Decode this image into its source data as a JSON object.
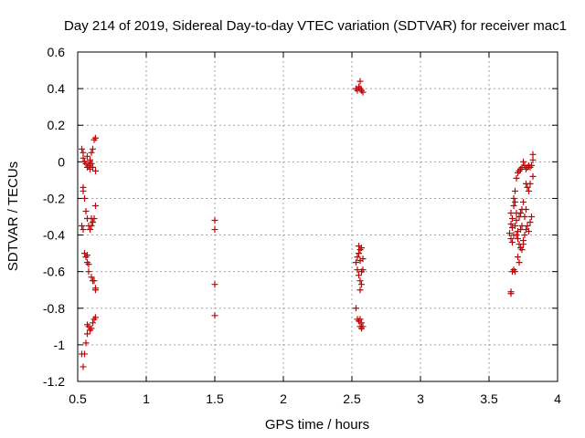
{
  "chart_data": {
    "type": "scatter",
    "title": "Day 214 of 2019, Sidereal Day-to-day VTEC variation (SDTVAR) for receiver mac1",
    "xlabel": "GPS time / hours",
    "ylabel": "SDTVAR / TECUs",
    "xlim": [
      0.5,
      4.0
    ],
    "ylim": [
      -1.2,
      0.6
    ],
    "xticks": [
      0.5,
      1.0,
      1.5,
      2.0,
      2.5,
      3.0,
      3.5,
      4.0
    ],
    "xtick_labels": [
      "0.5",
      "1",
      "1.5",
      "2",
      "2.5",
      "3",
      "3.5",
      "4"
    ],
    "yticks": [
      -1.2,
      -1.0,
      -0.8,
      -0.6,
      -0.4,
      -0.2,
      0.0,
      0.2,
      0.4,
      0.6
    ],
    "ytick_labels": [
      "-1.2",
      "-1",
      "-0.8",
      "-0.6",
      "-0.4",
      "-0.2",
      "0",
      "0.2",
      "0.4",
      "0.6"
    ],
    "grid": true,
    "marker": "plus",
    "color": "#cc0000",
    "series": [
      {
        "name": "SDTVAR",
        "points": [
          [
            0.53,
            0.07
          ],
          [
            0.54,
            0.05
          ],
          [
            0.54,
            0.02
          ],
          [
            0.55,
            0.0
          ],
          [
            0.56,
            -0.01
          ],
          [
            0.57,
            0.03
          ],
          [
            0.57,
            -0.03
          ],
          [
            0.58,
            -0.02
          ],
          [
            0.59,
            0.01
          ],
          [
            0.59,
            -0.04
          ],
          [
            0.6,
            0.05
          ],
          [
            0.6,
            -0.01
          ],
          [
            0.61,
            0.07
          ],
          [
            0.61,
            -0.03
          ],
          [
            0.62,
            0.12
          ],
          [
            0.63,
            0.13
          ],
          [
            0.63,
            -0.05
          ],
          [
            0.59,
            0.0
          ],
          [
            0.54,
            -0.14
          ],
          [
            0.54,
            -0.16
          ],
          [
            0.55,
            -0.2
          ],
          [
            0.56,
            -0.27
          ],
          [
            0.57,
            -0.31
          ],
          [
            0.53,
            -0.35
          ],
          [
            0.54,
            -0.37
          ],
          [
            0.58,
            -0.35
          ],
          [
            0.59,
            -0.37
          ],
          [
            0.6,
            -0.31
          ],
          [
            0.6,
            -0.35
          ],
          [
            0.61,
            -0.33
          ],
          [
            0.62,
            -0.31
          ],
          [
            0.63,
            -0.24
          ],
          [
            0.55,
            -0.5
          ],
          [
            0.56,
            -0.52
          ],
          [
            0.57,
            -0.51
          ],
          [
            0.57,
            -0.55
          ],
          [
            0.58,
            -0.56
          ],
          [
            0.58,
            -0.6
          ],
          [
            0.6,
            -0.63
          ],
          [
            0.61,
            -0.65
          ],
          [
            0.62,
            -0.65
          ],
          [
            0.63,
            -0.69
          ],
          [
            0.63,
            -0.7
          ],
          [
            0.57,
            -0.89
          ],
          [
            0.58,
            -0.9
          ],
          [
            0.59,
            -0.92
          ],
          [
            0.6,
            -0.91
          ],
          [
            0.61,
            -0.88
          ],
          [
            0.62,
            -0.86
          ],
          [
            0.63,
            -0.85
          ],
          [
            0.57,
            -0.94
          ],
          [
            0.56,
            -0.99
          ],
          [
            0.55,
            -1.05
          ],
          [
            0.53,
            -1.05
          ],
          [
            0.54,
            -1.12
          ],
          [
            1.5,
            -0.32
          ],
          [
            1.5,
            -0.37
          ],
          [
            1.5,
            -0.67
          ],
          [
            1.5,
            -0.84
          ],
          [
            2.53,
            0.4
          ],
          [
            2.54,
            0.39
          ],
          [
            2.55,
            0.41
          ],
          [
            2.56,
            0.44
          ],
          [
            2.56,
            0.4
          ],
          [
            2.57,
            0.39
          ],
          [
            2.58,
            0.38
          ],
          [
            2.55,
            -0.46
          ],
          [
            2.56,
            -0.48
          ],
          [
            2.57,
            -0.47
          ],
          [
            2.55,
            -0.5
          ],
          [
            2.54,
            -0.52
          ],
          [
            2.56,
            -0.54
          ],
          [
            2.58,
            -0.53
          ],
          [
            2.53,
            -0.55
          ],
          [
            2.54,
            -0.59
          ],
          [
            2.57,
            -0.6
          ],
          [
            2.58,
            -0.59
          ],
          [
            2.55,
            -0.62
          ],
          [
            2.56,
            -0.65
          ],
          [
            2.57,
            -0.67
          ],
          [
            2.56,
            -0.7
          ],
          [
            2.53,
            -0.8
          ],
          [
            2.54,
            -0.86
          ],
          [
            2.55,
            -0.87
          ],
          [
            2.56,
            -0.86
          ],
          [
            2.57,
            -0.88
          ],
          [
            2.56,
            -0.9
          ],
          [
            2.58,
            -0.9
          ],
          [
            2.57,
            -0.91
          ],
          [
            3.66,
            -0.28
          ],
          [
            3.67,
            -0.31
          ],
          [
            3.66,
            -0.34
          ],
          [
            3.67,
            -0.36
          ],
          [
            3.65,
            -0.39
          ],
          [
            3.66,
            -0.42
          ],
          [
            3.67,
            -0.44
          ],
          [
            3.68,
            -0.4
          ],
          [
            3.69,
            -0.35
          ],
          [
            3.7,
            -0.32
          ],
          [
            3.68,
            -0.2
          ],
          [
            3.69,
            -0.16
          ],
          [
            3.7,
            -0.09
          ],
          [
            3.71,
            -0.06
          ],
          [
            3.72,
            -0.05
          ],
          [
            3.73,
            -0.04
          ],
          [
            3.74,
            -0.03
          ],
          [
            3.75,
            0.0
          ],
          [
            3.76,
            -0.02
          ],
          [
            3.77,
            -0.04
          ],
          [
            3.78,
            -0.03
          ],
          [
            3.79,
            -0.02
          ],
          [
            3.8,
            -0.03
          ],
          [
            3.81,
            -0.02
          ],
          [
            3.82,
            0.01
          ],
          [
            3.82,
            0.04
          ],
          [
            3.77,
            -0.12
          ],
          [
            3.78,
            -0.14
          ],
          [
            3.79,
            -0.16
          ],
          [
            3.8,
            -0.12
          ],
          [
            3.75,
            -0.22
          ],
          [
            3.74,
            -0.26
          ],
          [
            3.73,
            -0.28
          ],
          [
            3.72,
            -0.3
          ],
          [
            3.71,
            -0.38
          ],
          [
            3.7,
            -0.4
          ],
          [
            3.71,
            -0.42
          ],
          [
            3.72,
            -0.45
          ],
          [
            3.73,
            -0.47
          ],
          [
            3.74,
            -0.48
          ],
          [
            3.75,
            -0.45
          ],
          [
            3.76,
            -0.4
          ],
          [
            3.77,
            -0.37
          ],
          [
            3.78,
            -0.35
          ],
          [
            3.79,
            -0.38
          ],
          [
            3.8,
            -0.33
          ],
          [
            3.81,
            -0.3
          ],
          [
            3.82,
            -0.08
          ],
          [
            3.76,
            -0.3
          ],
          [
            3.77,
            -0.26
          ],
          [
            3.71,
            -0.52
          ],
          [
            3.72,
            -0.55
          ],
          [
            3.68,
            -0.59
          ],
          [
            3.69,
            -0.6
          ],
          [
            3.67,
            -0.6
          ],
          [
            3.66,
            -0.72
          ],
          [
            3.66,
            -0.71
          ],
          [
            3.68,
            -0.24
          ],
          [
            3.69,
            -0.22
          ],
          [
            3.7,
            -0.28
          ],
          [
            3.74,
            -0.35
          ],
          [
            3.75,
            -0.43
          ],
          [
            3.73,
            -0.37
          ]
        ]
      }
    ]
  }
}
